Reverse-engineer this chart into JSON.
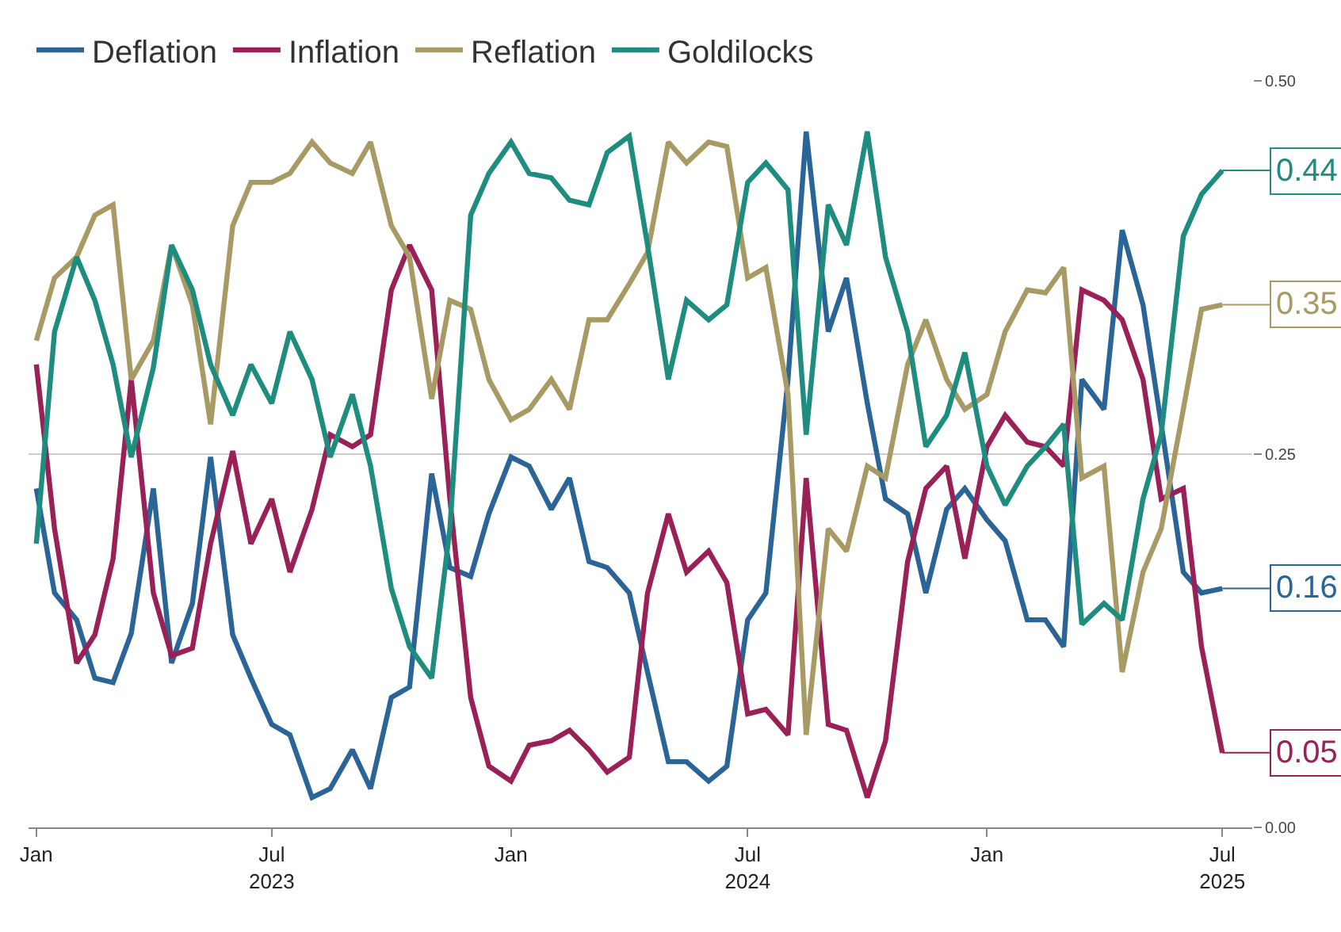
{
  "chart_data": {
    "type": "line",
    "legend": "top left",
    "grid": "y",
    "line_style": "solid",
    "marker": "none",
    "x": [
      "2023-01-01",
      "2023-01-15",
      "2023-02-01",
      "2023-02-15",
      "2023-03-01",
      "2023-03-15",
      "2023-04-01",
      "2023-04-15",
      "2023-05-01",
      "2023-05-15",
      "2023-06-01",
      "2023-06-15",
      "2023-07-01",
      "2023-07-15",
      "2023-08-01",
      "2023-08-15",
      "2023-09-01",
      "2023-09-15",
      "2023-10-01",
      "2023-10-15",
      "2023-11-01",
      "2023-11-15",
      "2023-12-01",
      "2023-12-15",
      "2024-01-01",
      "2024-01-15",
      "2024-02-01",
      "2024-02-15",
      "2024-03-01",
      "2024-03-15",
      "2024-04-01",
      "2024-04-15",
      "2024-05-01",
      "2024-05-15",
      "2024-06-01",
      "2024-06-15",
      "2024-07-01",
      "2024-07-15",
      "2024-08-01",
      "2024-08-15",
      "2024-09-01",
      "2024-09-15",
      "2024-10-01",
      "2024-10-15",
      "2024-11-01",
      "2024-11-15",
      "2024-12-01",
      "2024-12-15",
      "2025-01-01",
      "2025-01-15",
      "2025-02-01",
      "2025-02-15",
      "2025-03-01",
      "2025-03-15",
      "2025-04-01",
      "2025-04-15",
      "2025-05-01",
      "2025-05-15",
      "2025-06-01",
      "2025-06-15",
      "2025-07-01"
    ],
    "series": [
      {
        "name": "Deflation",
        "color": "#2b6497",
        "values": [
          0.227,
          0.157,
          0.139,
          0.1,
          0.097,
          0.13,
          0.227,
          0.11,
          0.15,
          0.248,
          0.129,
          0.1,
          0.069,
          0.062,
          0.02,
          0.026,
          0.052,
          0.026,
          0.087,
          0.094,
          0.237,
          0.174,
          0.168,
          0.21,
          0.248,
          0.242,
          0.213,
          0.234,
          0.178,
          0.174,
          0.157,
          0.104,
          0.044,
          0.044,
          0.031,
          0.041,
          0.139,
          0.157,
          0.3,
          0.466,
          0.332,
          0.368,
          0.284,
          0.22,
          0.21,
          0.157,
          0.213,
          0.227,
          0.206,
          0.192,
          0.139,
          0.139,
          0.121,
          0.3,
          0.28,
          0.4,
          0.35,
          0.27,
          0.171,
          0.157,
          0.16
        ]
      },
      {
        "name": "Inflation",
        "color": "#9a2157",
        "values": [
          0.31,
          0.2,
          0.11,
          0.129,
          0.18,
          0.3,
          0.157,
          0.115,
          0.12,
          0.19,
          0.252,
          0.19,
          0.22,
          0.171,
          0.213,
          0.263,
          0.255,
          0.263,
          0.36,
          0.39,
          0.36,
          0.22,
          0.087,
          0.041,
          0.031,
          0.055,
          0.058,
          0.065,
          0.052,
          0.037,
          0.047,
          0.157,
          0.21,
          0.171,
          0.185,
          0.164,
          0.076,
          0.079,
          0.062,
          0.234,
          0.069,
          0.065,
          0.02,
          0.058,
          0.178,
          0.227,
          0.242,
          0.18,
          0.255,
          0.276,
          0.258,
          0.255,
          0.242,
          0.36,
          0.353,
          0.34,
          0.3,
          0.22,
          0.227,
          0.121,
          0.05
        ]
      },
      {
        "name": "Reflation",
        "color": "#a89a64",
        "values": [
          0.326,
          0.368,
          0.382,
          0.41,
          0.417,
          0.3,
          0.326,
          0.39,
          0.35,
          0.27,
          0.403,
          0.432,
          0.432,
          0.438,
          0.459,
          0.445,
          0.438,
          0.459,
          0.403,
          0.382,
          0.287,
          0.353,
          0.347,
          0.3,
          0.273,
          0.28,
          0.3,
          0.28,
          0.34,
          0.34,
          0.364,
          0.385,
          0.459,
          0.445,
          0.459,
          0.456,
          0.368,
          0.375,
          0.29,
          0.062,
          0.2,
          0.185,
          0.242,
          0.234,
          0.31,
          0.34,
          0.3,
          0.28,
          0.29,
          0.332,
          0.36,
          0.358,
          0.375,
          0.234,
          0.242,
          0.104,
          0.171,
          0.2,
          0.28,
          0.347,
          0.35
        ]
      },
      {
        "name": "Goldilocks",
        "color": "#1e8c7e",
        "values": [
          0.19,
          0.332,
          0.382,
          0.353,
          0.31,
          0.248,
          0.308,
          0.39,
          0.36,
          0.31,
          0.276,
          0.31,
          0.284,
          0.332,
          0.3,
          0.248,
          0.29,
          0.242,
          0.16,
          0.121,
          0.1,
          0.2,
          0.41,
          0.438,
          0.459,
          0.438,
          0.435,
          0.42,
          0.417,
          0.452,
          0.463,
          0.39,
          0.3,
          0.353,
          0.34,
          0.35,
          0.432,
          0.445,
          0.427,
          0.263,
          0.417,
          0.39,
          0.466,
          0.382,
          0.332,
          0.255,
          0.276,
          0.318,
          0.242,
          0.216,
          0.242,
          0.255,
          0.27,
          0.136,
          0.15,
          0.139,
          0.22,
          0.263,
          0.396,
          0.424,
          0.44
        ]
      }
    ],
    "xlim": [
      "2022-12-26",
      "2025-07-24"
    ],
    "xticks": [
      {
        "value": "2023-01-01",
        "label": "Jan"
      },
      {
        "value": "2023-07-01",
        "label": "Jul\n2023"
      },
      {
        "value": "2024-01-01",
        "label": "Jan"
      },
      {
        "value": "2024-07-01",
        "label": "Jul\n2024"
      },
      {
        "value": "2025-01-01",
        "label": "Jan"
      },
      {
        "value": "2025-07-01",
        "label": "Jul\n2025"
      }
    ],
    "ylim": [
      0,
      0.5
    ],
    "yticks": [
      {
        "value": 0,
        "label": "0.00"
      },
      {
        "value": 0.25,
        "label": "0.25"
      },
      {
        "value": 0.5,
        "label": "0.50"
      }
    ],
    "annotations": [
      {
        "text": "0.16",
        "x": "2025-07-01",
        "y": 0.16
      },
      {
        "text": "0.05",
        "x": "2025-07-01",
        "y": 0.05
      },
      {
        "text": "0.35",
        "x": "2025-07-01",
        "y": 0.35
      },
      {
        "text": "0.44",
        "x": "2025-07-01",
        "y": 0.44
      }
    ]
  }
}
